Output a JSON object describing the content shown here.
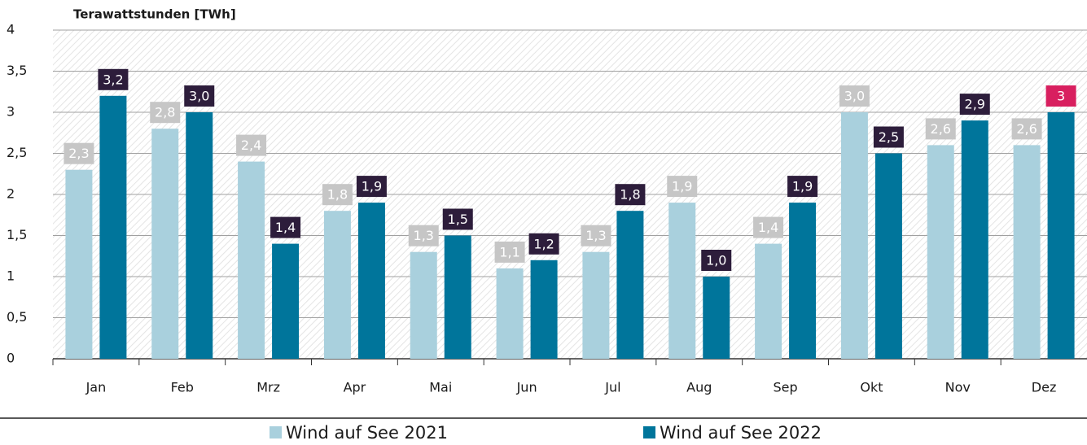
{
  "chart_data": {
    "type": "bar",
    "y_label": "Terawattstunden [TWh]",
    "categories": [
      "Jan",
      "Feb",
      "Mrz",
      "Apr",
      "Mai",
      "Jun",
      "Jul",
      "Aug",
      "Sep",
      "Okt",
      "Nov",
      "Dez"
    ],
    "series": [
      {
        "name": "Wind auf See 2021",
        "color": "#a9d0dd",
        "label_color": "#c6c6c6",
        "values": [
          2.3,
          2.8,
          2.4,
          1.8,
          1.3,
          1.1,
          1.3,
          1.9,
          1.4,
          3.0,
          2.6,
          2.6
        ],
        "value_labels": [
          "2,3",
          "2,8",
          "2,4",
          "1,8",
          "1,3",
          "1,1",
          "1,3",
          "1,9",
          "1,4",
          "3,0",
          "2,6",
          "2,6"
        ]
      },
      {
        "name": "Wind auf See 2022",
        "color": "#00759b",
        "label_color": "#2d1d3b",
        "label_colors": [
          "#2d1d3b",
          "#2d1d3b",
          "#2d1d3b",
          "#2d1d3b",
          "#2d1d3b",
          "#2d1d3b",
          "#2d1d3b",
          "#2d1d3b",
          "#2d1d3b",
          "#2d1d3b",
          "#2d1d3b",
          "#d81f5f"
        ],
        "values": [
          3.2,
          3.0,
          1.4,
          1.9,
          1.5,
          1.2,
          1.8,
          1.0,
          1.9,
          2.5,
          2.9,
          3
        ],
        "value_labels": [
          "3,2",
          "3,0",
          "1,4",
          "1,9",
          "1,5",
          "1,2",
          "1,8",
          "1,0",
          "1,9",
          "2,5",
          "2,9",
          "3"
        ]
      }
    ],
    "ylim": [
      0,
      4
    ],
    "yticks": [
      0,
      {
        "value": 0.5,
        "label": "0,5"
      },
      1,
      {
        "value": 1.5,
        "label": "1,5"
      },
      2,
      {
        "value": 2.5,
        "label": "2,5"
      },
      3,
      {
        "value": 3.5,
        "label": "3,5"
      },
      4
    ],
    "grid": true
  }
}
